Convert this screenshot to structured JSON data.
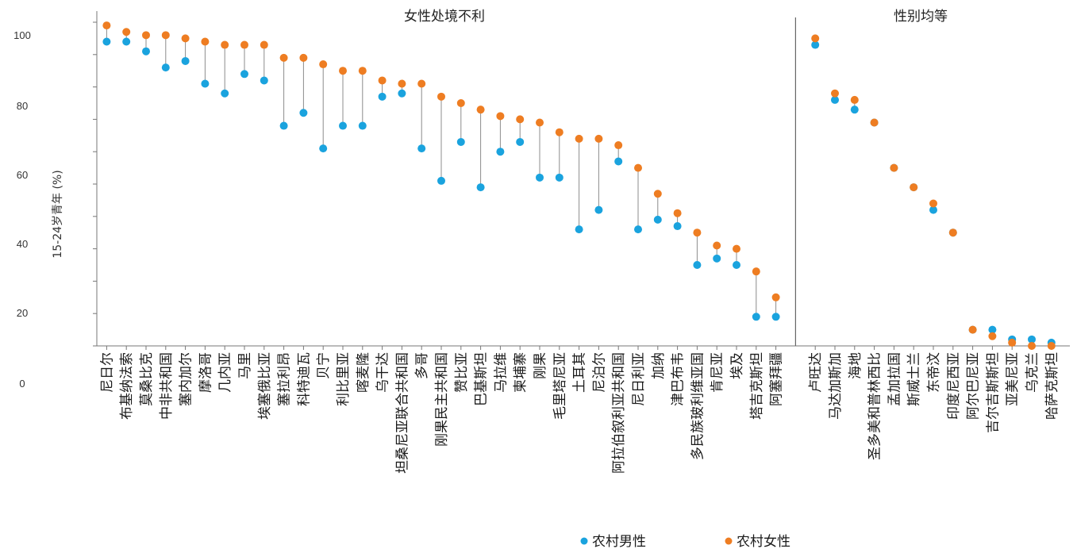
{
  "chart_data": {
    "type": "dumbbell",
    "ylabel": "15-24岁青年 (%)",
    "y_tick_labels": [
      "0",
      "20",
      "40",
      "60",
      "80",
      "100"
    ],
    "ylim": [
      0,
      100
    ],
    "grid": false,
    "legend_position": "bottom-center",
    "colors": {
      "male": "#1AA3DE",
      "female": "#EE7D22",
      "connector": "#8C8C8C",
      "axis": "#777777"
    },
    "series": [
      {
        "key": "male",
        "name": "农村男性"
      },
      {
        "key": "female",
        "name": "农村女性"
      }
    ],
    "groups": [
      {
        "title": "女性处境不利",
        "categories": [
          "尼日尔",
          "布基纳法索",
          "莫桑比克",
          "中非共和国",
          "塞内加尔",
          "摩洛哥",
          "几内亚",
          "马里",
          "埃塞俄比亚",
          "塞拉利昂",
          "科特迪瓦",
          "贝宁",
          "利比里亚",
          "喀麦隆",
          "乌干达",
          "坦桑尼亚联合共和国",
          "多哥",
          "刚果民主共和国",
          "赞比亚",
          "巴基斯坦",
          "马拉维",
          "柬埔寨",
          "刚果",
          "毛里塔尼亚",
          "土耳其",
          "尼泊尔",
          "阿拉伯叙利亚共和国",
          "尼日利亚",
          "加纳",
          "津巴布韦",
          "多民族玻利维亚国",
          "肯尼亚",
          "埃及",
          "塔吉克斯坦",
          "阿塞拜疆"
        ],
        "male": [
          94,
          94,
          91,
          86,
          88,
          81,
          78,
          84,
          82,
          68,
          72,
          61,
          68,
          68,
          77,
          78,
          61,
          51,
          63,
          49,
          60,
          63,
          52,
          52,
          36,
          42,
          57,
          36,
          39,
          37,
          25,
          27,
          25,
          9,
          9
        ],
        "female": [
          99,
          97,
          96,
          96,
          95,
          94,
          93,
          93,
          93,
          89,
          89,
          87,
          85,
          85,
          82,
          81,
          81,
          77,
          75,
          73,
          71,
          70,
          69,
          66,
          64,
          64,
          62,
          55,
          47,
          41,
          35,
          31,
          30,
          23,
          15
        ]
      },
      {
        "title": "性别均等",
        "categories": [
          "卢旺达",
          "马达加斯加",
          "海地",
          "圣多美和普林西比",
          "孟加拉国",
          "斯威士兰",
          "东帝汶",
          "印度尼西亚",
          "阿尔巴尼亚",
          "吉尔吉斯斯坦",
          "亚美尼亚",
          "乌克兰",
          "哈萨克斯坦"
        ],
        "male": [
          93,
          76,
          73,
          69,
          55,
          49,
          42,
          35,
          5,
          5,
          2,
          2,
          1
        ],
        "female": [
          95,
          78,
          76,
          69,
          55,
          49,
          44,
          35,
          5,
          3,
          1,
          0,
          0
        ]
      }
    ]
  }
}
